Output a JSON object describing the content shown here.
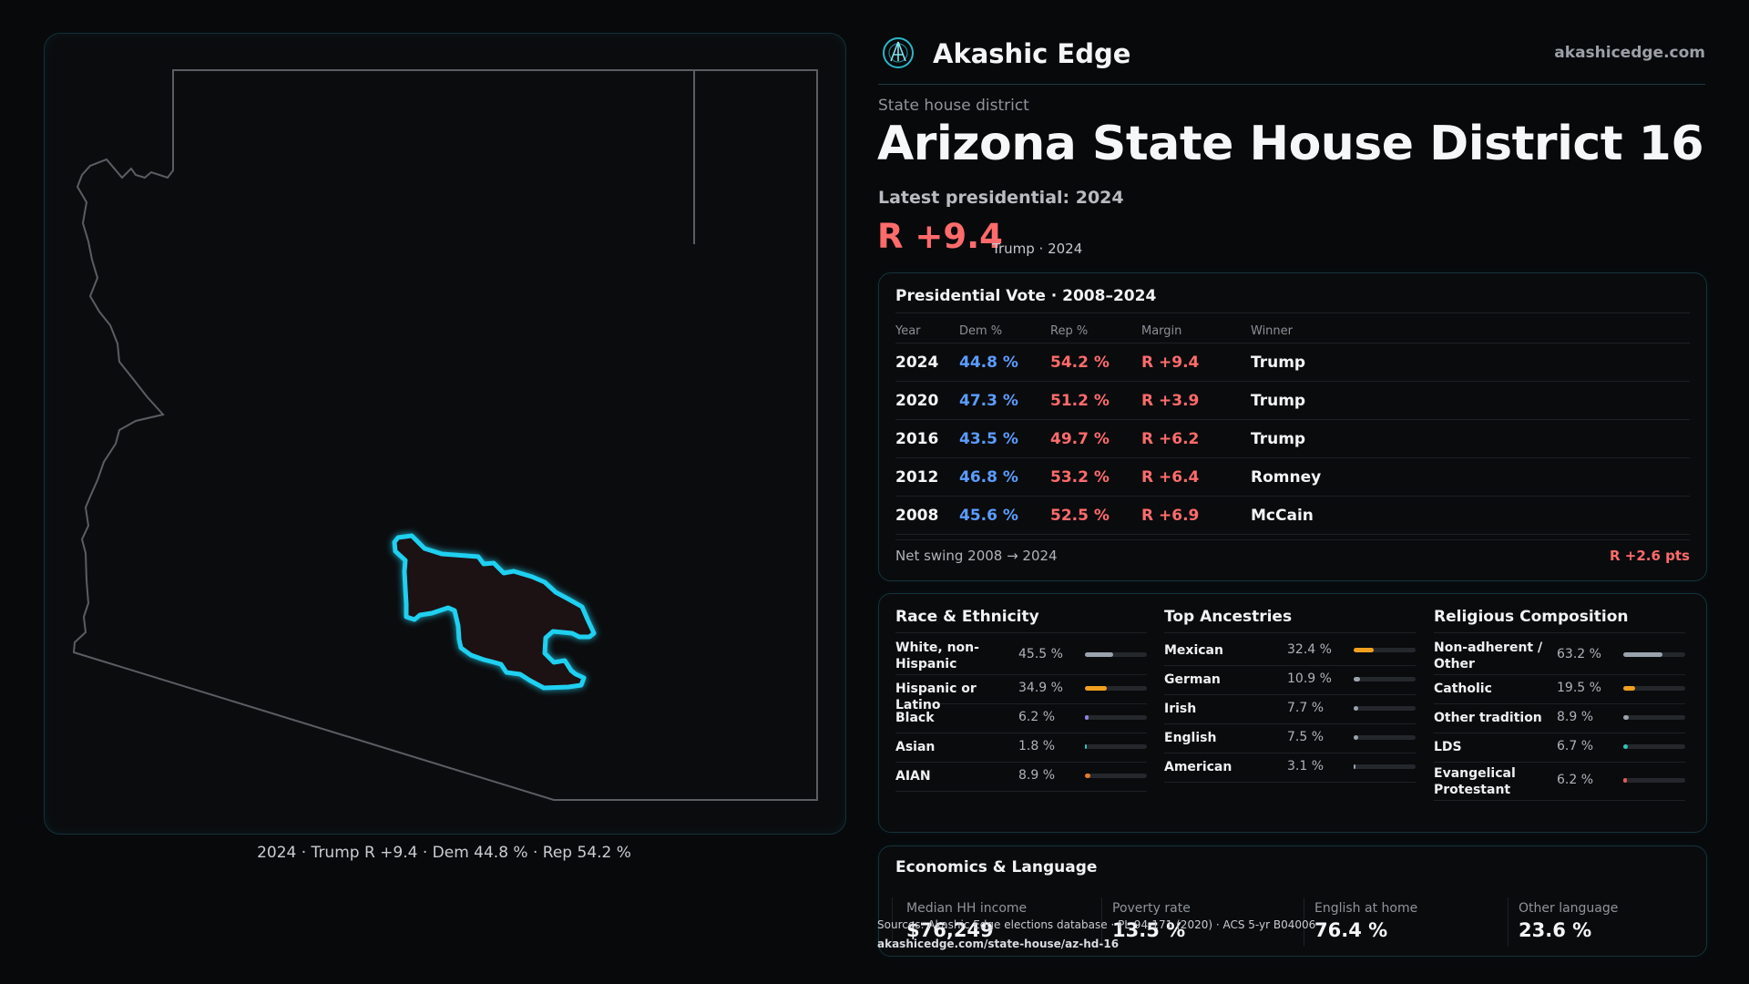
{
  "brand": {
    "name": "Akashic Edge",
    "site": "akashicedge.com",
    "logo_icon": "akashic-edge-logo-icon"
  },
  "header": {
    "kicker": "State house district",
    "title": "Arizona State House District 16",
    "latest_label": "Latest presidential: 2024",
    "margin": "R +9.4",
    "margin_sub": "Trump · 2024"
  },
  "map": {
    "caption": "2024 · Trump R +9.4 · Dem 44.8 % · Rep 54.2 %",
    "state_outline_color": "#5a5e63",
    "district_outline_color": "#1fd0f0",
    "district_fill_color": "#1c1214"
  },
  "presidential": {
    "title": "Presidential Vote · 2008–2024",
    "columns": [
      "Year",
      "Dem %",
      "Rep %",
      "Margin",
      "Winner"
    ],
    "rows": [
      {
        "year": "2024",
        "dem": "44.8 %",
        "rep": "54.2 %",
        "margin": "R +9.4",
        "winner": "Trump"
      },
      {
        "year": "2020",
        "dem": "47.3 %",
        "rep": "51.2 %",
        "margin": "R +3.9",
        "winner": "Trump"
      },
      {
        "year": "2016",
        "dem": "43.5 %",
        "rep": "49.7 %",
        "margin": "R +6.2",
        "winner": "Trump"
      },
      {
        "year": "2012",
        "dem": "46.8 %",
        "rep": "53.2 %",
        "margin": "R +6.4",
        "winner": "Romney"
      },
      {
        "year": "2008",
        "dem": "45.6 %",
        "rep": "52.5 %",
        "margin": "R +6.9",
        "winner": "McCain"
      }
    ],
    "net_swing_label": "Net swing 2008 → 2024",
    "net_swing_value": "R +2.6 pts",
    "dem_color": "#5b9cff",
    "rep_color": "#ff6b6b"
  },
  "race": {
    "title": "Race & Ethnicity",
    "items": [
      {
        "label": "White, non-Hispanic",
        "pct": "45.5 %",
        "value": 45.5,
        "color": "#9aa3ad"
      },
      {
        "label": "Hispanic or Latino",
        "pct": "34.9 %",
        "value": 34.9,
        "color": "#f0a020"
      },
      {
        "label": "Black",
        "pct": "6.2 %",
        "value": 6.2,
        "color": "#8f7fe0"
      },
      {
        "label": "Asian",
        "pct": "1.8 %",
        "value": 1.8,
        "color": "#2ec4b6"
      },
      {
        "label": "AIAN",
        "pct": "8.9 %",
        "value": 8.9,
        "color": "#e07a2a"
      }
    ]
  },
  "ancestry": {
    "title": "Top Ancestries",
    "items": [
      {
        "label": "Mexican",
        "pct": "32.4 %",
        "value": 32.4,
        "color": "#f0a020"
      },
      {
        "label": "German",
        "pct": "10.9 %",
        "value": 10.9,
        "color": "#9aa3ad"
      },
      {
        "label": "Irish",
        "pct": "7.7 %",
        "value": 7.7,
        "color": "#9aa3ad"
      },
      {
        "label": "English",
        "pct": "7.5 %",
        "value": 7.5,
        "color": "#9aa3ad"
      },
      {
        "label": "American",
        "pct": "3.1 %",
        "value": 3.1,
        "color": "#9aa3ad"
      }
    ]
  },
  "religion": {
    "title": "Religious Composition",
    "items": [
      {
        "label": "Non-adherent / Other",
        "pct": "63.2 %",
        "value": 63.2,
        "color": "#9aa3ad"
      },
      {
        "label": "Catholic",
        "pct": "19.5 %",
        "value": 19.5,
        "color": "#f0a020"
      },
      {
        "label": "Other tradition",
        "pct": "8.9 %",
        "value": 8.9,
        "color": "#9aa3ad"
      },
      {
        "label": "LDS",
        "pct": "6.7 %",
        "value": 6.7,
        "color": "#2ec4b6"
      },
      {
        "label": "Evangelical Protestant",
        "pct": "6.2 %",
        "value": 6.2,
        "color": "#e05a5a"
      }
    ]
  },
  "economics": {
    "title": "Economics & Language",
    "stats": [
      {
        "label": "Median HH income",
        "value": "$76,249"
      },
      {
        "label": "Poverty rate",
        "value": "13.5 %"
      },
      {
        "label": "English at home",
        "value": "76.4 %"
      },
      {
        "label": "Other language",
        "value": "23.6 %"
      }
    ]
  },
  "footer": {
    "source": "Sources: Akashic Edge elections database · PL 94-171 (2020) · ACS 5-yr B04006",
    "url": "akashicedge.com/state-house/az-hd-16"
  }
}
